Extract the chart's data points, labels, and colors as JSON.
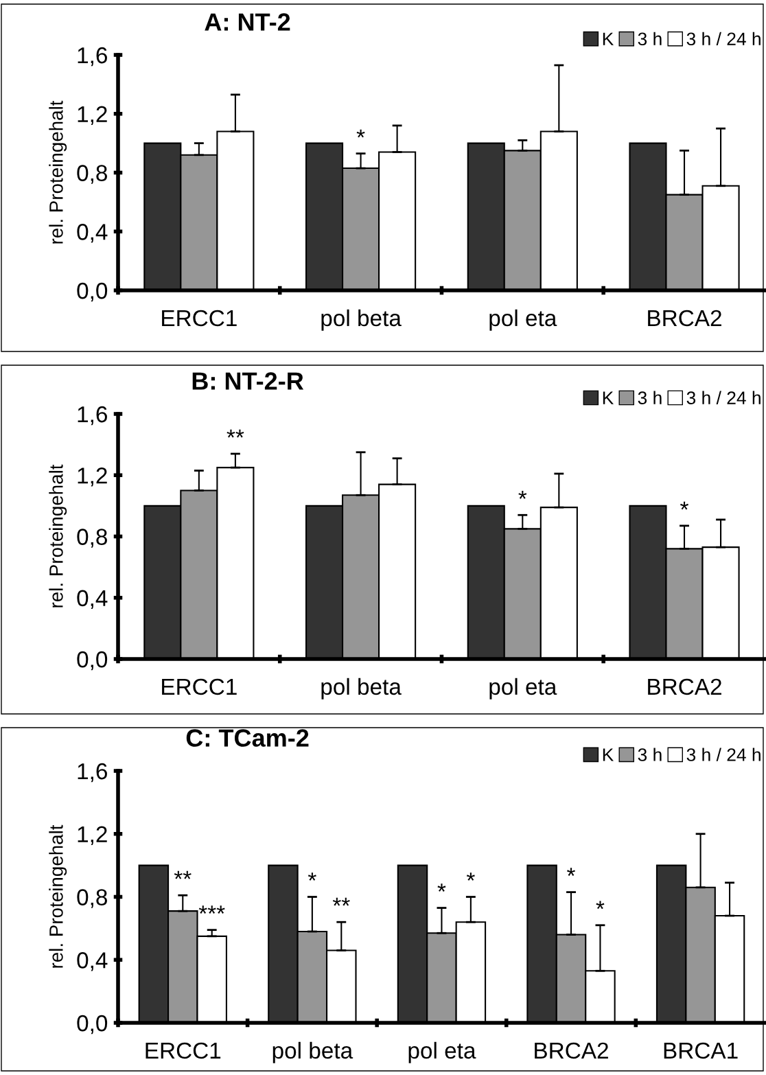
{
  "chart_data": [
    {
      "type": "bar",
      "title": "A: NT-2",
      "ylabel": "rel. Proteingehalt",
      "categories": [
        "ERCC1",
        "pol beta",
        "pol eta",
        "BRCA2"
      ],
      "series": [
        {
          "name": "K",
          "color": "#333333",
          "values": [
            1.0,
            1.0,
            1.0,
            1.0
          ]
        },
        {
          "name": "3 h",
          "color": "#969696",
          "values": [
            0.92,
            0.83,
            0.95,
            0.65
          ],
          "errors": [
            [
              0.92,
              1.0
            ],
            [
              0.83,
              0.93
            ],
            [
              0.95,
              1.02
            ],
            [
              0.65,
              0.95
            ]
          ],
          "value_labels": [
            null,
            "*",
            null,
            null
          ]
        },
        {
          "name": "3 h / 24 h",
          "color": "#ffffff",
          "values": [
            1.08,
            0.94,
            1.08,
            0.71
          ],
          "errors": [
            [
              1.08,
              1.33
            ],
            [
              0.94,
              1.12
            ],
            [
              1.08,
              1.53
            ],
            [
              0.71,
              1.1
            ]
          ]
        }
      ],
      "ylim": [
        0,
        1.6
      ],
      "yticks": [
        {
          "value": 0,
          "label": "0,0"
        },
        {
          "value": 0.4,
          "label": "0,4"
        },
        {
          "value": 0.8,
          "label": "0,8"
        },
        {
          "value": 1.2,
          "label": "1,2"
        },
        {
          "value": 1.6,
          "label": "1,6"
        }
      ],
      "grid": false,
      "legend": "top right"
    },
    {
      "type": "bar",
      "title": "B: NT-2-R",
      "ylabel": "rel. Proteingehalt",
      "categories": [
        "ERCC1",
        "pol beta",
        "pol eta",
        "BRCA2"
      ],
      "series": [
        {
          "name": "K",
          "color": "#333333",
          "values": [
            1.0,
            1.0,
            1.0,
            1.0
          ]
        },
        {
          "name": "3 h",
          "color": "#969696",
          "values": [
            1.1,
            1.07,
            0.85,
            0.72
          ],
          "errors": [
            [
              1.1,
              1.23
            ],
            [
              1.07,
              1.35
            ],
            [
              0.85,
              0.94
            ],
            [
              0.72,
              0.87
            ]
          ],
          "value_labels": [
            null,
            null,
            "*",
            "*"
          ]
        },
        {
          "name": "3 h / 24 h",
          "color": "#ffffff",
          "values": [
            1.25,
            1.14,
            0.99,
            0.73
          ],
          "errors": [
            [
              1.25,
              1.34
            ],
            [
              1.14,
              1.31
            ],
            [
              0.99,
              1.21
            ],
            [
              0.73,
              0.91
            ]
          ],
          "value_labels": [
            "**",
            null,
            null,
            null
          ]
        }
      ],
      "ylim": [
        0,
        1.6
      ],
      "yticks": [
        {
          "value": 0,
          "label": "0,0"
        },
        {
          "value": 0.4,
          "label": "0,4"
        },
        {
          "value": 0.8,
          "label": "0,8"
        },
        {
          "value": 1.2,
          "label": "1,2"
        },
        {
          "value": 1.6,
          "label": "1,6"
        }
      ],
      "grid": false,
      "legend": "top right"
    },
    {
      "type": "bar",
      "title": "C: TCam-2",
      "ylabel": "rel. Proteingehalt",
      "categories": [
        "ERCC1",
        "pol beta",
        "pol eta",
        "BRCA2",
        "BRCA1"
      ],
      "series": [
        {
          "name": "K",
          "color": "#333333",
          "values": [
            1.0,
            1.0,
            1.0,
            1.0,
            1.0
          ]
        },
        {
          "name": "3 h",
          "color": "#969696",
          "values": [
            0.71,
            0.58,
            0.57,
            0.56,
            0.86
          ],
          "errors": [
            [
              0.71,
              0.81
            ],
            [
              0.58,
              0.8
            ],
            [
              0.57,
              0.73
            ],
            [
              0.56,
              0.83
            ],
            [
              0.86,
              1.2
            ]
          ],
          "value_labels": [
            "**",
            "*",
            "*",
            "*",
            null
          ]
        },
        {
          "name": "3 h / 24 h",
          "color": "#ffffff",
          "values": [
            0.55,
            0.46,
            0.64,
            0.33,
            0.68
          ],
          "errors": [
            [
              0.55,
              0.59
            ],
            [
              0.46,
              0.64
            ],
            [
              0.64,
              0.8
            ],
            [
              0.33,
              0.62
            ],
            [
              0.68,
              0.89
            ]
          ],
          "value_labels": [
            "***",
            "**",
            "*",
            "*",
            null
          ]
        }
      ],
      "ylim": [
        0,
        1.6
      ],
      "yticks": [
        {
          "value": 0,
          "label": "0,0"
        },
        {
          "value": 0.4,
          "label": "0,4"
        },
        {
          "value": 0.8,
          "label": "0,8"
        },
        {
          "value": 1.2,
          "label": "1,2"
        },
        {
          "value": 1.6,
          "label": "1,6"
        }
      ],
      "grid": false,
      "legend": "top right"
    }
  ]
}
